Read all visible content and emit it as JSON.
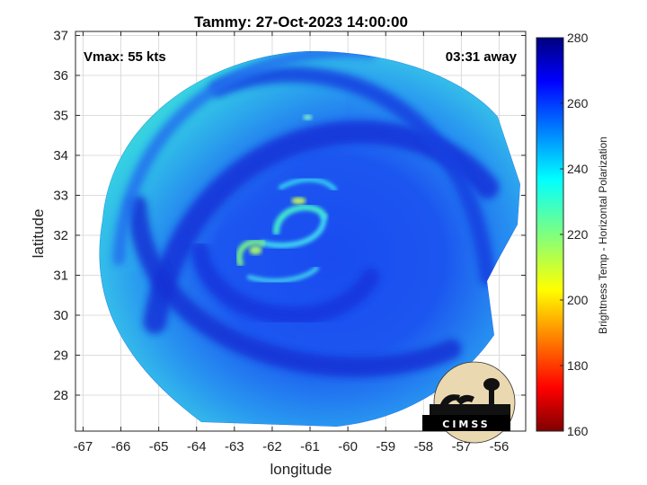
{
  "chart_data": {
    "type": "heatmap",
    "title": "Tammy: 27-Oct-2023 14:00:00",
    "xlabel": "longitude",
    "ylabel": "latitude",
    "xlim": [
      -67.2,
      -55.3
    ],
    "ylim": [
      27.1,
      37.1
    ],
    "x_ticks": [
      -67,
      -66,
      -65,
      -64,
      -63,
      -62,
      -61,
      -60,
      -59,
      -58,
      -57,
      -56
    ],
    "y_ticks": [
      28,
      29,
      30,
      31,
      32,
      33,
      34,
      35,
      36,
      37
    ],
    "grid": true,
    "annotations": {
      "vmax": "Vmax: 55 kts",
      "away": "03:31 away"
    },
    "storm_center": {
      "lon": -61.3,
      "lat": 32.3
    },
    "colorbar": {
      "label": "Brightness Temp - Horizontal Polarization",
      "min": 160,
      "max": 280,
      "ticks": [
        160,
        180,
        200,
        220,
        240,
        260,
        280
      ],
      "colormap": "jet"
    },
    "logo": "CIMSS"
  }
}
